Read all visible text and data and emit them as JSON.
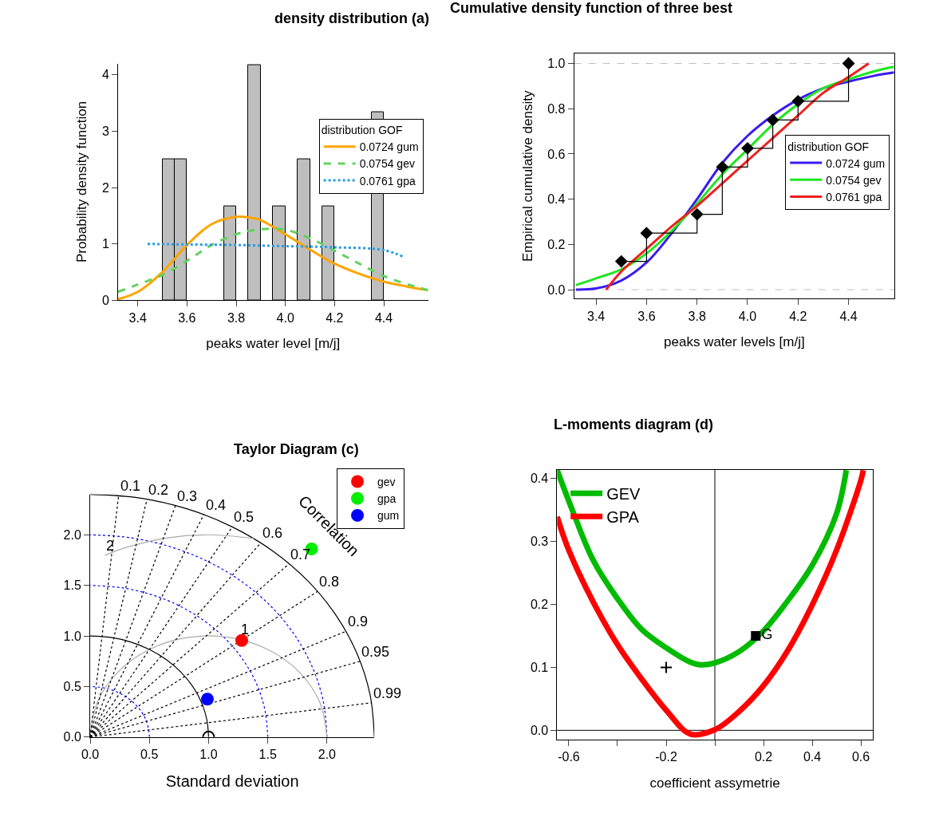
{
  "chart_data": [
    {
      "type": "histogram",
      "title": "density distribution (a)",
      "xlabel": "peaks water level [m/j]",
      "ylabel": "Probability density function",
      "legend_title": "distribution GOF",
      "legend": "right",
      "grid": false,
      "bins": [
        3.5,
        3.55,
        3.6,
        3.65,
        3.7,
        3.75,
        3.8,
        3.85,
        3.9,
        3.95,
        4.0,
        4.05,
        4.1,
        4.15,
        4.2,
        4.25,
        4.3,
        4.35,
        4.4
      ],
      "values": [
        2.5,
        2.5,
        0,
        0,
        0,
        1.67,
        0,
        4.17,
        0,
        1.67,
        0,
        2.5,
        0,
        1.67,
        0,
        0,
        0,
        3.33
      ],
      "color": "#bebebe",
      "xlim": [
        3.32,
        4.58
      ],
      "ylim": [
        0,
        4.2
      ],
      "xticks": [
        3.4,
        3.6,
        3.8,
        {
          "value": 4.0,
          "label": "4.0"
        },
        4.2,
        4.4
      ],
      "yticks": [
        0,
        1,
        2,
        3,
        4
      ],
      "series": [
        {
          "name": "0.0724 gum",
          "type": "line",
          "color": "#ffa500",
          "line_style": "solid",
          "x": [
            3.32,
            3.4,
            3.5,
            3.6,
            3.7,
            3.8,
            3.85,
            3.9,
            4.0,
            4.1,
            4.2,
            4.3,
            4.4,
            4.5,
            4.58
          ],
          "values": [
            0.02,
            0.15,
            0.5,
            0.98,
            1.35,
            1.48,
            1.47,
            1.42,
            1.17,
            0.9,
            0.65,
            0.47,
            0.33,
            0.24,
            0.18
          ]
        },
        {
          "name": "0.0754 gev",
          "type": "line",
          "color": "#5fd35f",
          "line_style": "dashed",
          "x": [
            3.32,
            3.4,
            3.5,
            3.6,
            3.7,
            3.8,
            3.9,
            4.0,
            4.1,
            4.2,
            4.3,
            4.4,
            4.5,
            4.58
          ],
          "values": [
            0.15,
            0.28,
            0.45,
            0.7,
            0.98,
            1.17,
            1.26,
            1.25,
            1.1,
            0.88,
            0.65,
            0.43,
            0.28,
            0.18
          ]
        },
        {
          "name": "0.0761 gpa",
          "type": "line",
          "color": "#2a9de6",
          "line_style": "dotted",
          "x": [
            3.44,
            3.6,
            3.8,
            4.0,
            4.2,
            4.4,
            4.48
          ],
          "values": [
            1.0,
            0.99,
            0.98,
            0.96,
            0.94,
            0.89,
            0.77
          ]
        }
      ]
    },
    {
      "type": "line",
      "title": "Cumulative density function of three best",
      "xlabel": "peaks water levels [m/j]",
      "ylabel": "Empirical cumulative density",
      "legend_title": "distribution GOF",
      "legend": "right",
      "grid": false,
      "xlim": [
        3.313,
        4.582
      ],
      "ylim": [
        -0.04,
        1.043
      ],
      "xticks": [
        3.4,
        3.6,
        3.8,
        {
          "value": 4.0,
          "label": "4.0"
        },
        4.2,
        4.4
      ],
      "yticks": [
        {
          "value": 0,
          "label": "0.0"
        },
        0.2,
        0.4,
        0.6,
        0.8,
        {
          "value": 1,
          "label": "1.0"
        }
      ],
      "ref_lines": [
        {
          "axis": "y",
          "value": 0,
          "color": "#bebebe",
          "line_style": "dashed"
        },
        {
          "axis": "y",
          "value": 1,
          "color": "#bebebe",
          "line_style": "dashed"
        }
      ],
      "series": [
        {
          "name": "0.0724 gum",
          "color": "#3b1cf0",
          "line_style": "solid",
          "x": [
            3.32,
            3.4,
            3.5,
            3.6,
            3.7,
            3.8,
            3.9,
            4.0,
            4.1,
            4.2,
            4.3,
            4.4,
            4.5,
            4.58
          ],
          "values": [
            0.0,
            0.005,
            0.04,
            0.12,
            0.25,
            0.4,
            0.56,
            0.68,
            0.77,
            0.84,
            0.89,
            0.92,
            0.945,
            0.96
          ]
        },
        {
          "name": "0.0754 gev",
          "color": "#1ee61e",
          "line_style": "solid",
          "x": [
            3.32,
            3.4,
            3.5,
            3.6,
            3.7,
            3.8,
            3.9,
            4.0,
            4.1,
            4.2,
            4.3,
            4.4,
            4.5,
            4.58
          ],
          "values": [
            0.02,
            0.05,
            0.09,
            0.16,
            0.26,
            0.38,
            0.51,
            0.62,
            0.73,
            0.82,
            0.89,
            0.93,
            0.965,
            0.985
          ]
        },
        {
          "name": "0.0761 gpa",
          "color": "#f01e1e",
          "line_style": "solid",
          "x": [
            3.44,
            3.5,
            3.6,
            3.7,
            3.8,
            3.9,
            4.0,
            4.1,
            4.2,
            4.3,
            4.4,
            4.48
          ],
          "values": [
            0.0,
            0.08,
            0.18,
            0.28,
            0.37,
            0.47,
            0.57,
            0.67,
            0.77,
            0.87,
            0.94,
            1.0
          ]
        },
        {
          "type": "step",
          "marker": "diamond",
          "color": "#000000",
          "x": [
            3.5,
            3.6,
            3.8,
            3.9,
            4.0,
            4.1,
            4.2,
            4.4
          ],
          "values": [
            0.125,
            0.25,
            0.333,
            0.542,
            0.625,
            0.75,
            0.833,
            1.0
          ]
        }
      ]
    },
    {
      "type": "scatter",
      "title": "Taylor Diagram (c)",
      "xlabel": "Standard deviation",
      "legend": "top right",
      "grid": false,
      "marker": "circle",
      "xlim": [
        0,
        2.4
      ],
      "ylim": [
        0,
        2.4
      ],
      "xticks": [
        {
          "value": 0,
          "label": "0.0"
        },
        0.5,
        {
          "value": 1,
          "label": "1.0"
        },
        1.5,
        {
          "value": 2,
          "label": "2.0"
        }
      ],
      "yticks": [
        {
          "value": 0,
          "label": "0.0"
        },
        0.5,
        {
          "value": 1,
          "label": "1.0"
        },
        1.5,
        {
          "value": 2,
          "label": "2.0"
        }
      ],
      "annotations": [
        {
          "text": "0.1",
          "x": 0.24,
          "y": 2.388
        },
        {
          "text": "0.2",
          "x": 0.48,
          "y": 2.352
        },
        {
          "text": "0.3",
          "x": 0.72,
          "y": 2.289
        },
        {
          "text": "0.4",
          "x": 0.96,
          "y": 2.2
        },
        {
          "text": "0.5",
          "x": 1.2,
          "y": 2.078
        },
        {
          "text": "0.6",
          "x": 1.44,
          "y": 1.92
        },
        {
          "text": "0.7",
          "x": 1.68,
          "y": 1.714
        },
        {
          "text": "0.8",
          "x": 1.92,
          "y": 1.44
        },
        {
          "text": "0.9",
          "x": 2.16,
          "y": 1.046
        },
        {
          "text": "0.95",
          "x": 2.28,
          "y": 0.749
        },
        {
          "text": "0.99",
          "x": 2.376,
          "y": 0.339
        },
        "Correlation",
        {
          "text": "1",
          "x": 1.259,
          "y": 0.966
        },
        {
          "text": "2",
          "x": 0.123,
          "y": 1.798
        }
      ],
      "series": [
        {
          "color": "#000000",
          "type": "line",
          "marker": "none",
          "line_style": "solid",
          "x": [
            2.4,
            2.364,
            2.255,
            2.078,
            1.839,
            1.543,
            1.2,
            0.821,
            0.417,
            0
          ],
          "values": [
            0,
            0.417,
            0.821,
            1.2,
            1.543,
            1.839,
            2.078,
            2.255,
            2.364,
            2.4
          ]
        },
        {
          "color": "#000000",
          "type": "line",
          "marker": "none",
          "line_style": "solid",
          "x": [
            1,
            0.985,
            0.94,
            0.866,
            0.766,
            0.643,
            0.5,
            0.342,
            0.174,
            0
          ],
          "values": [
            0,
            0.174,
            0.342,
            0.5,
            0.643,
            0.766,
            0.866,
            0.94,
            0.985,
            1
          ]
        },
        {
          "color": "#0000ff",
          "type": "line",
          "marker": "none",
          "line_style": "dotted",
          "x": [
            0.5,
            0.492,
            0.47,
            0.433,
            0.383,
            0.321,
            0.25,
            0.171,
            0.087,
            0
          ],
          "values": [
            0,
            0.087,
            0.171,
            0.25,
            0.321,
            0.383,
            0.433,
            0.47,
            0.492,
            0.5
          ]
        },
        {
          "color": "#0000ff",
          "type": "line",
          "marker": "none",
          "line_style": "dotted",
          "x": [
            1.5,
            1.477,
            1.41,
            1.299,
            1.149,
            0.964,
            0.75,
            0.513,
            0.26,
            0
          ],
          "values": [
            0,
            0.26,
            0.513,
            0.75,
            0.964,
            1.149,
            1.299,
            1.41,
            1.477,
            1.5
          ]
        },
        {
          "color": "#0000ff",
          "type": "line",
          "marker": "none",
          "line_style": "dotted",
          "x": [
            2,
            1.97,
            1.879,
            1.732,
            1.532,
            1.286,
            1,
            0.684,
            0.347,
            0
          ],
          "values": [
            0,
            0.347,
            0.684,
            1,
            1.286,
            1.532,
            1.732,
            1.879,
            1.97,
            2
          ]
        },
        {
          "color": "#aaaaaa",
          "type": "line",
          "marker": "none",
          "line_style": "solid",
          "x": [
            2,
            1.94,
            1.766,
            1.5,
            1.174,
            0.826,
            0.5,
            0.234,
            0.06,
            0
          ],
          "values": [
            0,
            0.342,
            0.643,
            0.866,
            0.985,
            0.985,
            0.866,
            0.643,
            0.342,
            0
          ]
        },
        {
          "color": "#aaaaaa",
          "type": "line",
          "marker": "none",
          "line_style": "solid",
          "x": [
            1.382,
            1,
            0.653,
            0.316,
            0.123
          ],
          "values": [
            1.963,
            2,
            1.97,
            1.879,
            1.798
          ]
        },
        {
          "color": "#000000",
          "type": "line",
          "marker": "none",
          "line_style": "dotted",
          "x": [
            0,
            0.24
          ],
          "values": [
            0,
            2.388
          ]
        },
        {
          "color": "#000000",
          "type": "line",
          "marker": "none",
          "line_style": "dotted",
          "x": [
            0,
            0.48
          ],
          "values": [
            0,
            2.352
          ]
        },
        {
          "color": "#000000",
          "type": "line",
          "marker": "none",
          "line_style": "dotted",
          "x": [
            0,
            0.72
          ],
          "values": [
            0,
            2.289
          ]
        },
        {
          "color": "#000000",
          "type": "line",
          "marker": "none",
          "line_style": "dotted",
          "x": [
            0,
            0.96
          ],
          "values": [
            0,
            2.2
          ]
        },
        {
          "color": "#000000",
          "type": "line",
          "marker": "none",
          "line_style": "dotted",
          "x": [
            0,
            1.2
          ],
          "values": [
            0,
            2.078
          ]
        },
        {
          "color": "#000000",
          "type": "line",
          "marker": "none",
          "line_style": "dotted",
          "x": [
            0,
            1.44
          ],
          "values": [
            0,
            1.92
          ]
        },
        {
          "color": "#000000",
          "type": "line",
          "marker": "none",
          "line_style": "dotted",
          "x": [
            0,
            1.68
          ],
          "values": [
            0,
            1.714
          ]
        },
        {
          "color": "#000000",
          "type": "line",
          "marker": "none",
          "line_style": "dotted",
          "x": [
            0,
            1.92
          ],
          "values": [
            0,
            1.44
          ]
        },
        {
          "color": "#000000",
          "type": "line",
          "marker": "none",
          "line_style": "dotted",
          "x": [
            0,
            2.16
          ],
          "values": [
            0,
            1.046
          ]
        },
        {
          "color": "#000000",
          "type": "line",
          "marker": "none",
          "line_style": "dotted",
          "x": [
            0,
            2.28
          ],
          "values": [
            0,
            0.749
          ]
        },
        {
          "color": "#000000",
          "type": "line",
          "marker": "none",
          "line_style": "dotted",
          "x": [
            0,
            2.376
          ],
          "values": [
            0,
            0.339
          ]
        },
        {
          "color": "#000000",
          "marker": "circle-open",
          "x": [
            1.0
          ],
          "values": [
            0
          ]
        },
        {
          "name": "gev",
          "color": "#ff0000",
          "x": [
            1.28
          ],
          "values": [
            0.955
          ]
        },
        {
          "name": "gpa",
          "color": "#00ee00",
          "x": [
            1.87
          ],
          "values": [
            1.86
          ]
        },
        {
          "name": "gum",
          "color": "#0000ff",
          "x": [
            0.99
          ],
          "values": [
            0.375
          ]
        }
      ]
    },
    {
      "type": "line",
      "title": "L-moments diagram (d)",
      "xlabel": "coefficient assymetrie",
      "legend": "top left",
      "grid": false,
      "xlim": [
        -0.648,
        0.649
      ],
      "ylim": [
        -0.015,
        0.414
      ],
      "xticks": [
        -0.6,
        {
          "value": -0.4,
          "label": null
        },
        -0.2,
        {
          "value": 0,
          "label": null
        },
        0.2,
        0.4,
        0.6
      ],
      "yticks": [
        {
          "value": 0,
          "label": "0.0"
        },
        0.1,
        0.2,
        0.3,
        0.4
      ],
      "ref_lines": [
        {
          "axis": "x",
          "value": 0,
          "color": "#000000",
          "line_style": "solid"
        },
        {
          "axis": "y",
          "value": 0,
          "color": "#000000",
          "line_style": "solid"
        }
      ],
      "series": [
        {
          "name": "GEV",
          "color": "#00bb00",
          "x": [
            -0.648,
            -0.585,
            -0.5,
            -0.4,
            -0.3,
            -0.2,
            -0.1,
            -0.06,
            0,
            0.1,
            0.2,
            0.3,
            0.4,
            0.5,
            0.54
          ],
          "values": [
            0.413,
            0.349,
            0.27,
            0.209,
            0.16,
            0.131,
            0.108,
            0.104,
            0.107,
            0.125,
            0.158,
            0.206,
            0.262,
            0.344,
            0.413
          ]
        },
        {
          "name": "GPA",
          "color": "#ff0000",
          "x": [
            -0.648,
            -0.6,
            -0.5,
            -0.4,
            -0.3,
            -0.2,
            -0.1,
            0,
            0.1,
            0.2,
            0.3,
            0.4,
            0.5,
            0.6,
            0.61
          ],
          "values": [
            0.339,
            0.286,
            0.204,
            0.136,
            0.081,
            0.032,
            -0.006,
            0.001,
            0.03,
            0.071,
            0.127,
            0.199,
            0.286,
            0.397,
            0.413
          ]
        },
        {
          "type": "scatter",
          "marker": "square",
          "color": "#000000",
          "x": [
            0.168
          ],
          "values": [
            0.15
          ],
          "value_labels": [
            "G"
          ]
        },
        {
          "type": "scatter",
          "marker": "cross",
          "color": "#000000",
          "x": [
            -0.2
          ],
          "values": [
            0.1
          ]
        }
      ]
    }
  ]
}
